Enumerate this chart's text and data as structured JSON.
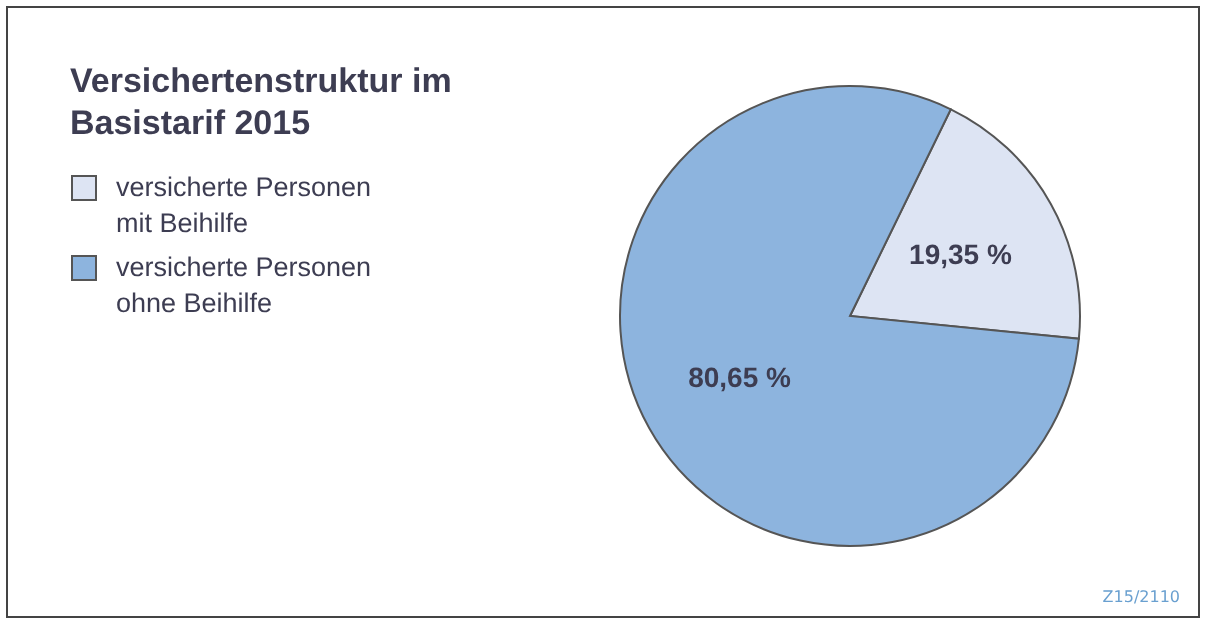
{
  "chart_data": {
    "type": "pie",
    "title": "Versichertenstruktur im Basistarif 2015",
    "categories": [
      "versicherte Personen mit Beihilfe",
      "versicherte Personen ohne Beihilfe"
    ],
    "values": [
      19.35,
      80.65
    ],
    "value_labels": [
      "19,35 %",
      "80,65 %"
    ],
    "colors": [
      "#dde4f3",
      "#8db4de"
    ],
    "legend": "left",
    "annotations": [
      "Z15/2110"
    ]
  }
}
